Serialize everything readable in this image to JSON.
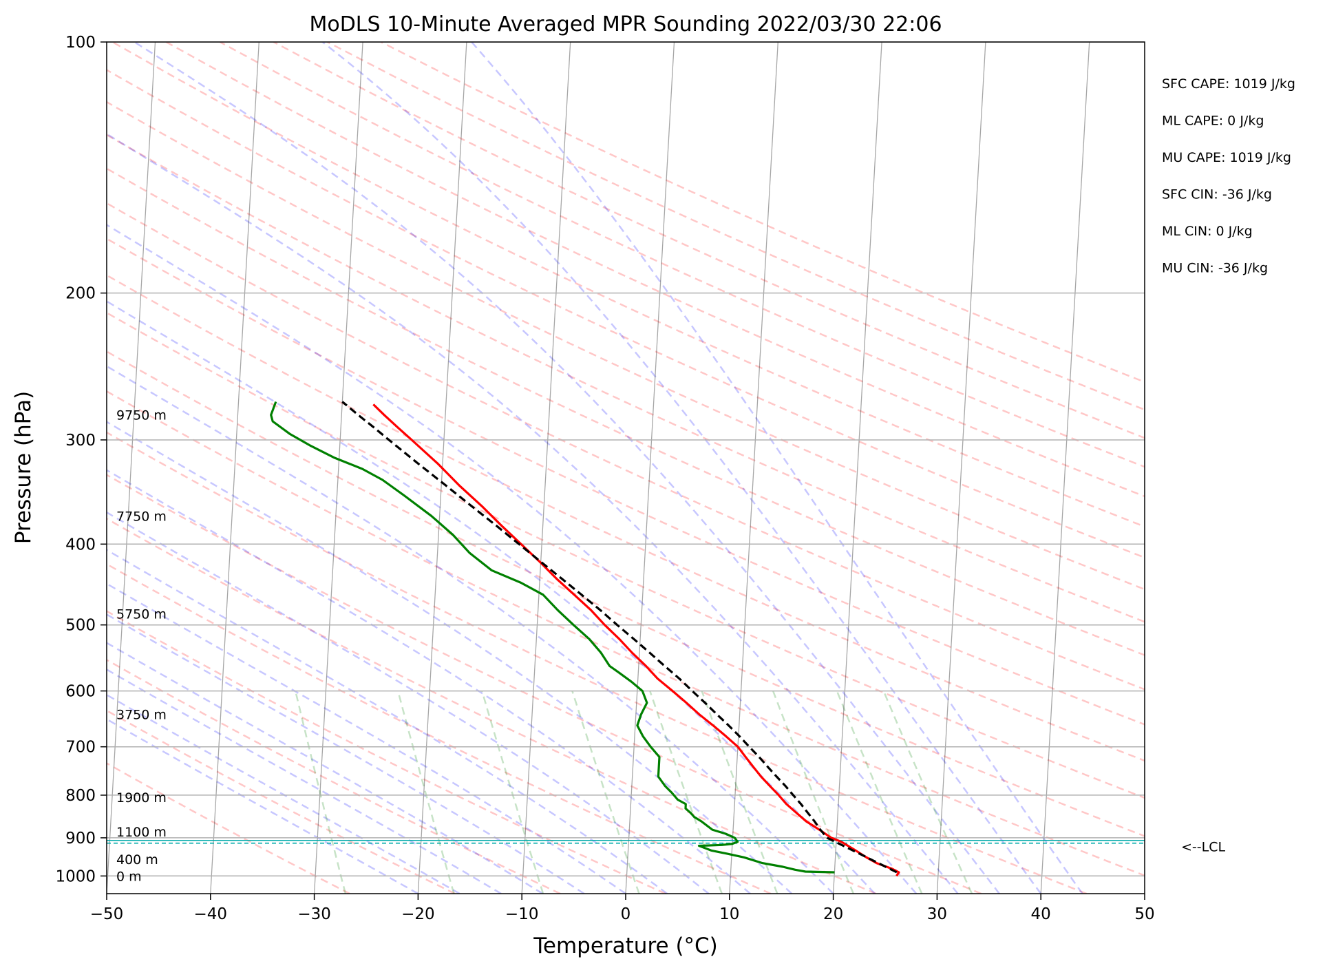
{
  "chart_data": {
    "type": "line",
    "title": "MoDLS 10-Minute Averaged MPR Sounding 2022/03/30 22:06",
    "xlabel": "Temperature (°C)",
    "ylabel": "Pressure (hPa)",
    "xlim": [
      -50,
      50
    ],
    "ylim": [
      1050,
      100
    ],
    "y_scale": "log",
    "skew": true,
    "grid": true,
    "x_ticks": [
      -50,
      -40,
      -30,
      -20,
      -10,
      0,
      10,
      20,
      30,
      40,
      50
    ],
    "x_tick_labels": [
      "−50",
      "−40",
      "−30",
      "−20",
      "−10",
      "0",
      "10",
      "20",
      "30",
      "40",
      "50"
    ],
    "y_ticks": [
      100,
      200,
      300,
      400,
      500,
      600,
      700,
      800,
      900,
      1000
    ],
    "y_tick_labels": [
      "100",
      "200",
      "300",
      "400",
      "500",
      "600",
      "700",
      "800",
      "900",
      "1000"
    ],
    "series": [
      {
        "role": "temperature",
        "color": "#ff0000",
        "style": "solid",
        "points": [
          [
            1000,
            26.0
          ],
          [
            990,
            26.2
          ],
          [
            980,
            25.5
          ],
          [
            965,
            24.0
          ],
          [
            950,
            23.0
          ],
          [
            930,
            21.8
          ],
          [
            910,
            20.5
          ],
          [
            900,
            19.5
          ],
          [
            880,
            18.3
          ],
          [
            860,
            17.0
          ],
          [
            840,
            16.0
          ],
          [
            820,
            15.0
          ],
          [
            800,
            14.2
          ],
          [
            780,
            13.3
          ],
          [
            760,
            12.4
          ],
          [
            740,
            11.6
          ],
          [
            720,
            10.8
          ],
          [
            700,
            10.0
          ],
          [
            680,
            8.8
          ],
          [
            660,
            7.5
          ],
          [
            640,
            6.1
          ],
          [
            620,
            4.8
          ],
          [
            600,
            3.4
          ],
          [
            580,
            1.9
          ],
          [
            560,
            0.7
          ],
          [
            540,
            -0.7
          ],
          [
            520,
            -2.0
          ],
          [
            500,
            -3.5
          ],
          [
            480,
            -4.9
          ],
          [
            460,
            -6.6
          ],
          [
            440,
            -8.4
          ],
          [
            420,
            -10.1
          ],
          [
            400,
            -12.0
          ],
          [
            380,
            -14.0
          ],
          [
            360,
            -16.0
          ],
          [
            340,
            -18.3
          ],
          [
            320,
            -20.5
          ],
          [
            300,
            -23.1
          ],
          [
            290,
            -24.5
          ],
          [
            280,
            -25.9
          ],
          [
            272,
            -27.0
          ]
        ]
      },
      {
        "role": "dewpoint",
        "color": "#008000",
        "style": "solid",
        "points": [
          [
            990,
            20.0
          ],
          [
            988,
            17.2
          ],
          [
            983,
            16.2
          ],
          [
            975,
            15.0
          ],
          [
            965,
            13.0
          ],
          [
            950,
            11.2
          ],
          [
            940,
            9.5
          ],
          [
            932,
            8.0
          ],
          [
            920,
            6.8
          ],
          [
            918,
            9.0
          ],
          [
            915,
            10.0
          ],
          [
            910,
            10.5
          ],
          [
            900,
            10.2
          ],
          [
            890,
            9.3
          ],
          [
            880,
            8.0
          ],
          [
            860,
            6.9
          ],
          [
            850,
            6.2
          ],
          [
            840,
            5.8
          ],
          [
            830,
            5.3
          ],
          [
            820,
            5.3
          ],
          [
            810,
            4.5
          ],
          [
            795,
            3.9
          ],
          [
            780,
            3.2
          ],
          [
            760,
            2.5
          ],
          [
            740,
            2.5
          ],
          [
            720,
            2.5
          ],
          [
            700,
            1.6
          ],
          [
            680,
            0.8
          ],
          [
            660,
            0.2
          ],
          [
            640,
            0.5
          ],
          [
            620,
            1.0
          ],
          [
            600,
            0.5
          ],
          [
            585,
            -0.6
          ],
          [
            570,
            -1.9
          ],
          [
            560,
            -2.8
          ],
          [
            540,
            -3.7
          ],
          [
            520,
            -4.9
          ],
          [
            500,
            -6.5
          ],
          [
            480,
            -8.1
          ],
          [
            460,
            -9.6
          ],
          [
            445,
            -11.8
          ],
          [
            430,
            -14.7
          ],
          [
            410,
            -16.9
          ],
          [
            390,
            -18.6
          ],
          [
            370,
            -20.8
          ],
          [
            350,
            -23.5
          ],
          [
            335,
            -25.7
          ],
          [
            325,
            -27.7
          ],
          [
            315,
            -30.5
          ],
          [
            305,
            -32.8
          ],
          [
            295,
            -34.9
          ],
          [
            285,
            -36.6
          ],
          [
            280,
            -36.8
          ],
          [
            270,
            -36.4
          ]
        ]
      },
      {
        "role": "parcel",
        "color": "#000000",
        "style": "dashed",
        "points": [
          [
            990,
            26.0
          ],
          [
            960,
            23.8
          ],
          [
            930,
            21.5
          ],
          [
            905,
            19.5
          ],
          [
            900,
            19.1
          ],
          [
            880,
            18.4
          ],
          [
            860,
            17.8
          ],
          [
            840,
            17.1
          ],
          [
            820,
            16.4
          ],
          [
            800,
            15.6
          ],
          [
            780,
            14.8
          ],
          [
            760,
            13.9
          ],
          [
            740,
            13.0
          ],
          [
            720,
            12.1
          ],
          [
            700,
            11.1
          ],
          [
            680,
            10.1
          ],
          [
            660,
            9.0
          ],
          [
            640,
            7.8
          ],
          [
            620,
            6.6
          ],
          [
            600,
            5.3
          ],
          [
            580,
            4.0
          ],
          [
            560,
            2.5
          ],
          [
            540,
            1.0
          ],
          [
            520,
            -0.6
          ],
          [
            500,
            -2.3
          ],
          [
            480,
            -4.0
          ],
          [
            460,
            -5.9
          ],
          [
            440,
            -7.9
          ],
          [
            420,
            -10.0
          ],
          [
            400,
            -12.2
          ],
          [
            380,
            -14.5
          ],
          [
            360,
            -17.0
          ],
          [
            340,
            -19.6
          ],
          [
            320,
            -22.4
          ],
          [
            300,
            -25.3
          ],
          [
            290,
            -26.8
          ],
          [
            280,
            -28.4
          ],
          [
            270,
            -30.0
          ]
        ]
      }
    ],
    "reference_lines": {
      "dry_adiabats_color": "#ff0000",
      "moist_adiabats_color": "#0000ff",
      "mixing_ratio_color": "#008000",
      "isotherm_color": "#000000"
    },
    "height_labels": [
      {
        "pressure": 1000,
        "text": "0 m"
      },
      {
        "pressure": 955,
        "text": "400 m"
      },
      {
        "pressure": 885,
        "text": "1100 m"
      },
      {
        "pressure": 805,
        "text": "1900 m"
      },
      {
        "pressure": 640,
        "text": "3750 m"
      },
      {
        "pressure": 485,
        "text": "5750 m"
      },
      {
        "pressure": 370,
        "text": "7750 m"
      },
      {
        "pressure": 280,
        "text": "9750 m"
      }
    ],
    "lcl": {
      "pressure": 910,
      "label": "<--LCL",
      "color": "#00aaaa"
    },
    "indices": [
      {
        "label": "SFC CAPE",
        "value": "1019 J/kg"
      },
      {
        "label": "ML CAPE",
        "value": "0 J/kg"
      },
      {
        "label": "MU CAPE",
        "value": "1019 J/kg"
      },
      {
        "label": "SFC CIN",
        "value": "-36 J/kg"
      },
      {
        "label": "ML CIN",
        "value": "0 J/kg"
      },
      {
        "label": "MU CIN",
        "value": "-36 J/kg"
      }
    ]
  }
}
